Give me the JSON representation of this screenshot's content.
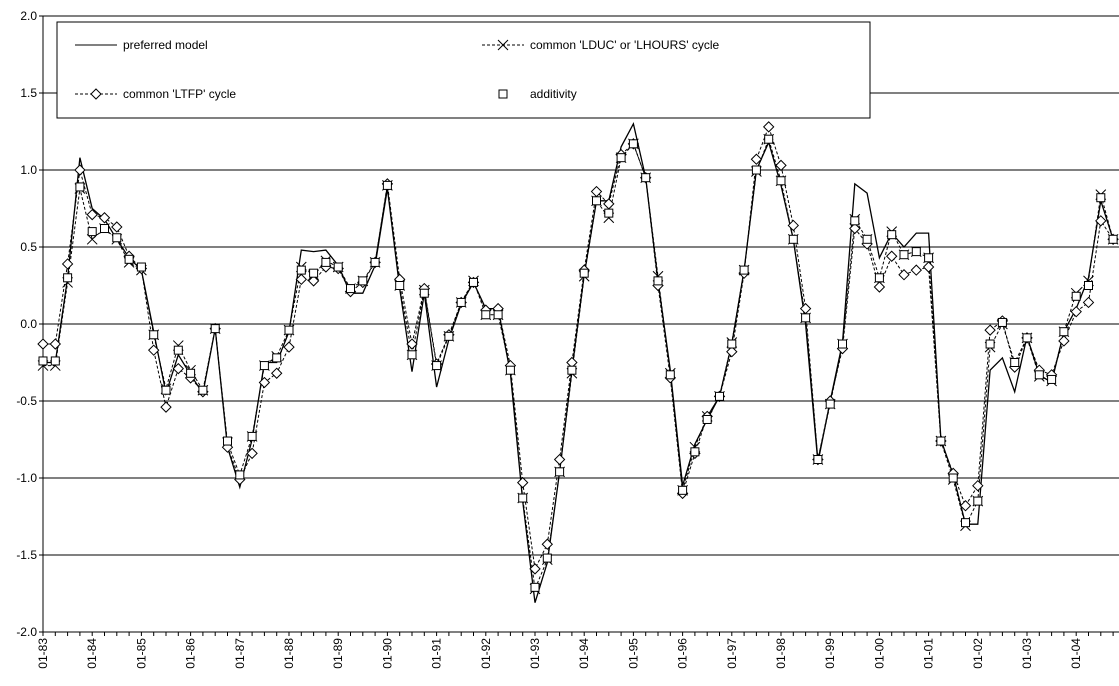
{
  "chart_data": {
    "type": "line",
    "categories": [
      "01-83",
      null,
      null,
      null,
      "01-84",
      null,
      null,
      null,
      "01-85",
      null,
      null,
      null,
      "01-86",
      null,
      null,
      null,
      "01-87",
      null,
      null,
      null,
      "01-88",
      null,
      null,
      null,
      "01-89",
      null,
      null,
      null,
      "01-90",
      null,
      null,
      null,
      "01-91",
      null,
      null,
      null,
      "01-92",
      null,
      null,
      null,
      "01-93",
      null,
      null,
      null,
      "01-94",
      null,
      null,
      null,
      "01-95",
      null,
      null,
      null,
      "01-96",
      null,
      null,
      null,
      "01-97",
      null,
      null,
      null,
      "01-98",
      null,
      null,
      null,
      "01-99",
      null,
      null,
      null,
      "01-00",
      null,
      null,
      null,
      "01-01",
      null,
      null,
      null,
      "01-02",
      null,
      null,
      null,
      "01-03",
      null,
      null,
      null,
      "01-04",
      null,
      null,
      null
    ],
    "series": [
      {
        "name": "preferred model",
        "color": "#000000",
        "line": "solid",
        "marker": "none",
        "values": [
          -0.25,
          -0.25,
          0.3,
          1.08,
          0.75,
          0.68,
          0.55,
          0.43,
          0.35,
          -0.05,
          -0.45,
          -0.2,
          -0.33,
          -0.45,
          -0.03,
          -0.8,
          -1.06,
          -0.75,
          -0.25,
          -0.25,
          -0.05,
          0.48,
          0.47,
          0.48,
          0.38,
          0.2,
          0.2,
          0.38,
          0.88,
          0.23,
          -0.31,
          0.2,
          -0.41,
          -0.1,
          0.13,
          0.27,
          0.1,
          0.1,
          -0.32,
          -1.15,
          -1.81,
          -1.55,
          -0.96,
          -0.3,
          0.32,
          0.8,
          0.8,
          1.15,
          1.3,
          0.95,
          0.28,
          -0.3,
          -1.05,
          -0.78,
          -0.62,
          -0.47,
          -0.13,
          0.35,
          1.0,
          1.18,
          0.9,
          0.55,
          0.0,
          -0.9,
          -0.5,
          -0.12,
          0.91,
          0.85,
          0.43,
          0.59,
          0.5,
          0.59,
          0.59,
          -0.75,
          -0.98,
          -1.3,
          -1.3,
          -0.3,
          -0.22,
          -0.44,
          -0.08,
          -0.33,
          -0.38,
          -0.05,
          0.1,
          0.3,
          0.8,
          0.55
        ]
      },
      {
        "name": "common 'LDUC' or 'LHOURS' cycle",
        "color": "#000000",
        "line": "dashed",
        "marker": "x",
        "values": [
          -0.27,
          -0.27,
          0.27,
          0.88,
          0.55,
          0.62,
          0.55,
          0.4,
          0.35,
          -0.07,
          -0.42,
          -0.14,
          -0.3,
          -0.43,
          -0.03,
          -0.77,
          -0.98,
          -0.73,
          -0.27,
          -0.21,
          -0.04,
          0.37,
          0.32,
          0.41,
          0.37,
          0.23,
          0.28,
          0.4,
          0.9,
          0.25,
          -0.2,
          0.22,
          -0.27,
          -0.08,
          0.14,
          0.28,
          0.06,
          0.06,
          -0.3,
          -1.13,
          -1.72,
          -1.53,
          -0.96,
          -0.32,
          0.31,
          0.8,
          0.69,
          1.08,
          1.17,
          0.95,
          0.31,
          -0.32,
          -1.08,
          -0.8,
          -0.6,
          -0.47,
          -0.12,
          0.35,
          0.99,
          1.2,
          0.93,
          0.55,
          0.04,
          -0.88,
          -0.52,
          -0.13,
          0.68,
          0.55,
          0.3,
          0.6,
          0.45,
          0.47,
          0.43,
          -0.76,
          -1.01,
          -1.31,
          -1.15,
          -0.15,
          0.0,
          -0.25,
          -0.09,
          -0.34,
          -0.37,
          -0.05,
          0.2,
          0.28,
          0.84,
          0.55
        ]
      },
      {
        "name": "common 'LTFP' cycle",
        "color": "#000000",
        "line": "dashed",
        "marker": "diamond",
        "values": [
          -0.13,
          -0.13,
          0.39,
          1.0,
          0.71,
          0.69,
          0.63,
          0.44,
          0.36,
          -0.17,
          -0.54,
          -0.29,
          -0.35,
          -0.44,
          -0.03,
          -0.8,
          -1.01,
          -0.84,
          -0.38,
          -0.32,
          -0.15,
          0.29,
          0.28,
          0.37,
          0.36,
          0.21,
          0.27,
          0.4,
          0.91,
          0.29,
          -0.13,
          0.23,
          -0.26,
          -0.07,
          0.14,
          0.27,
          0.09,
          0.1,
          -0.27,
          -1.03,
          -1.59,
          -1.43,
          -0.88,
          -0.25,
          0.35,
          0.86,
          0.78,
          1.1,
          1.17,
          0.95,
          0.25,
          -0.35,
          -1.1,
          -0.84,
          -0.6,
          -0.47,
          -0.18,
          0.33,
          1.07,
          1.28,
          1.03,
          0.64,
          0.1,
          -0.88,
          -0.5,
          -0.16,
          0.62,
          0.52,
          0.24,
          0.44,
          0.32,
          0.35,
          0.37,
          -0.76,
          -0.97,
          -1.18,
          -1.05,
          -0.04,
          0.02,
          -0.28,
          -0.09,
          -0.3,
          -0.33,
          -0.11,
          0.08,
          0.14,
          0.67,
          0.55
        ]
      },
      {
        "name": "additivity",
        "color": "#000000",
        "line": "none",
        "marker": "square",
        "values": [
          -0.24,
          -0.24,
          0.3,
          0.89,
          0.6,
          0.62,
          0.56,
          0.42,
          0.37,
          -0.07,
          -0.43,
          -0.17,
          -0.32,
          -0.43,
          -0.03,
          -0.76,
          -0.98,
          -0.73,
          -0.27,
          -0.22,
          -0.04,
          0.35,
          0.33,
          0.4,
          0.37,
          0.23,
          0.28,
          0.4,
          0.9,
          0.25,
          -0.2,
          0.2,
          -0.27,
          -0.08,
          0.14,
          0.27,
          0.06,
          0.06,
          -0.3,
          -1.13,
          -1.71,
          -1.52,
          -0.96,
          -0.3,
          0.33,
          0.8,
          0.72,
          1.08,
          1.17,
          0.95,
          0.28,
          -0.33,
          -1.08,
          -0.83,
          -0.62,
          -0.47,
          -0.13,
          0.35,
          1.0,
          1.2,
          0.93,
          0.55,
          0.04,
          -0.88,
          -0.52,
          -0.13,
          0.67,
          0.55,
          0.3,
          0.58,
          0.45,
          0.47,
          0.43,
          -0.76,
          -1.0,
          -1.29,
          -1.15,
          -0.13,
          0.01,
          -0.25,
          -0.09,
          -0.33,
          -0.36,
          -0.05,
          0.18,
          0.25,
          0.82,
          0.55
        ]
      }
    ],
    "ylim": [
      -2,
      2
    ],
    "yticks": [
      {
        "value": -2,
        "label": "-2.0"
      },
      -1.5,
      {
        "value": -1,
        "label": "-1.0"
      },
      -0.5,
      {
        "value": 0,
        "label": "0.0"
      },
      0.5,
      {
        "value": 1,
        "label": "1.0"
      },
      1.5,
      {
        "value": 2,
        "label": "2.0"
      }
    ],
    "grid": true,
    "legend": "top-left"
  }
}
